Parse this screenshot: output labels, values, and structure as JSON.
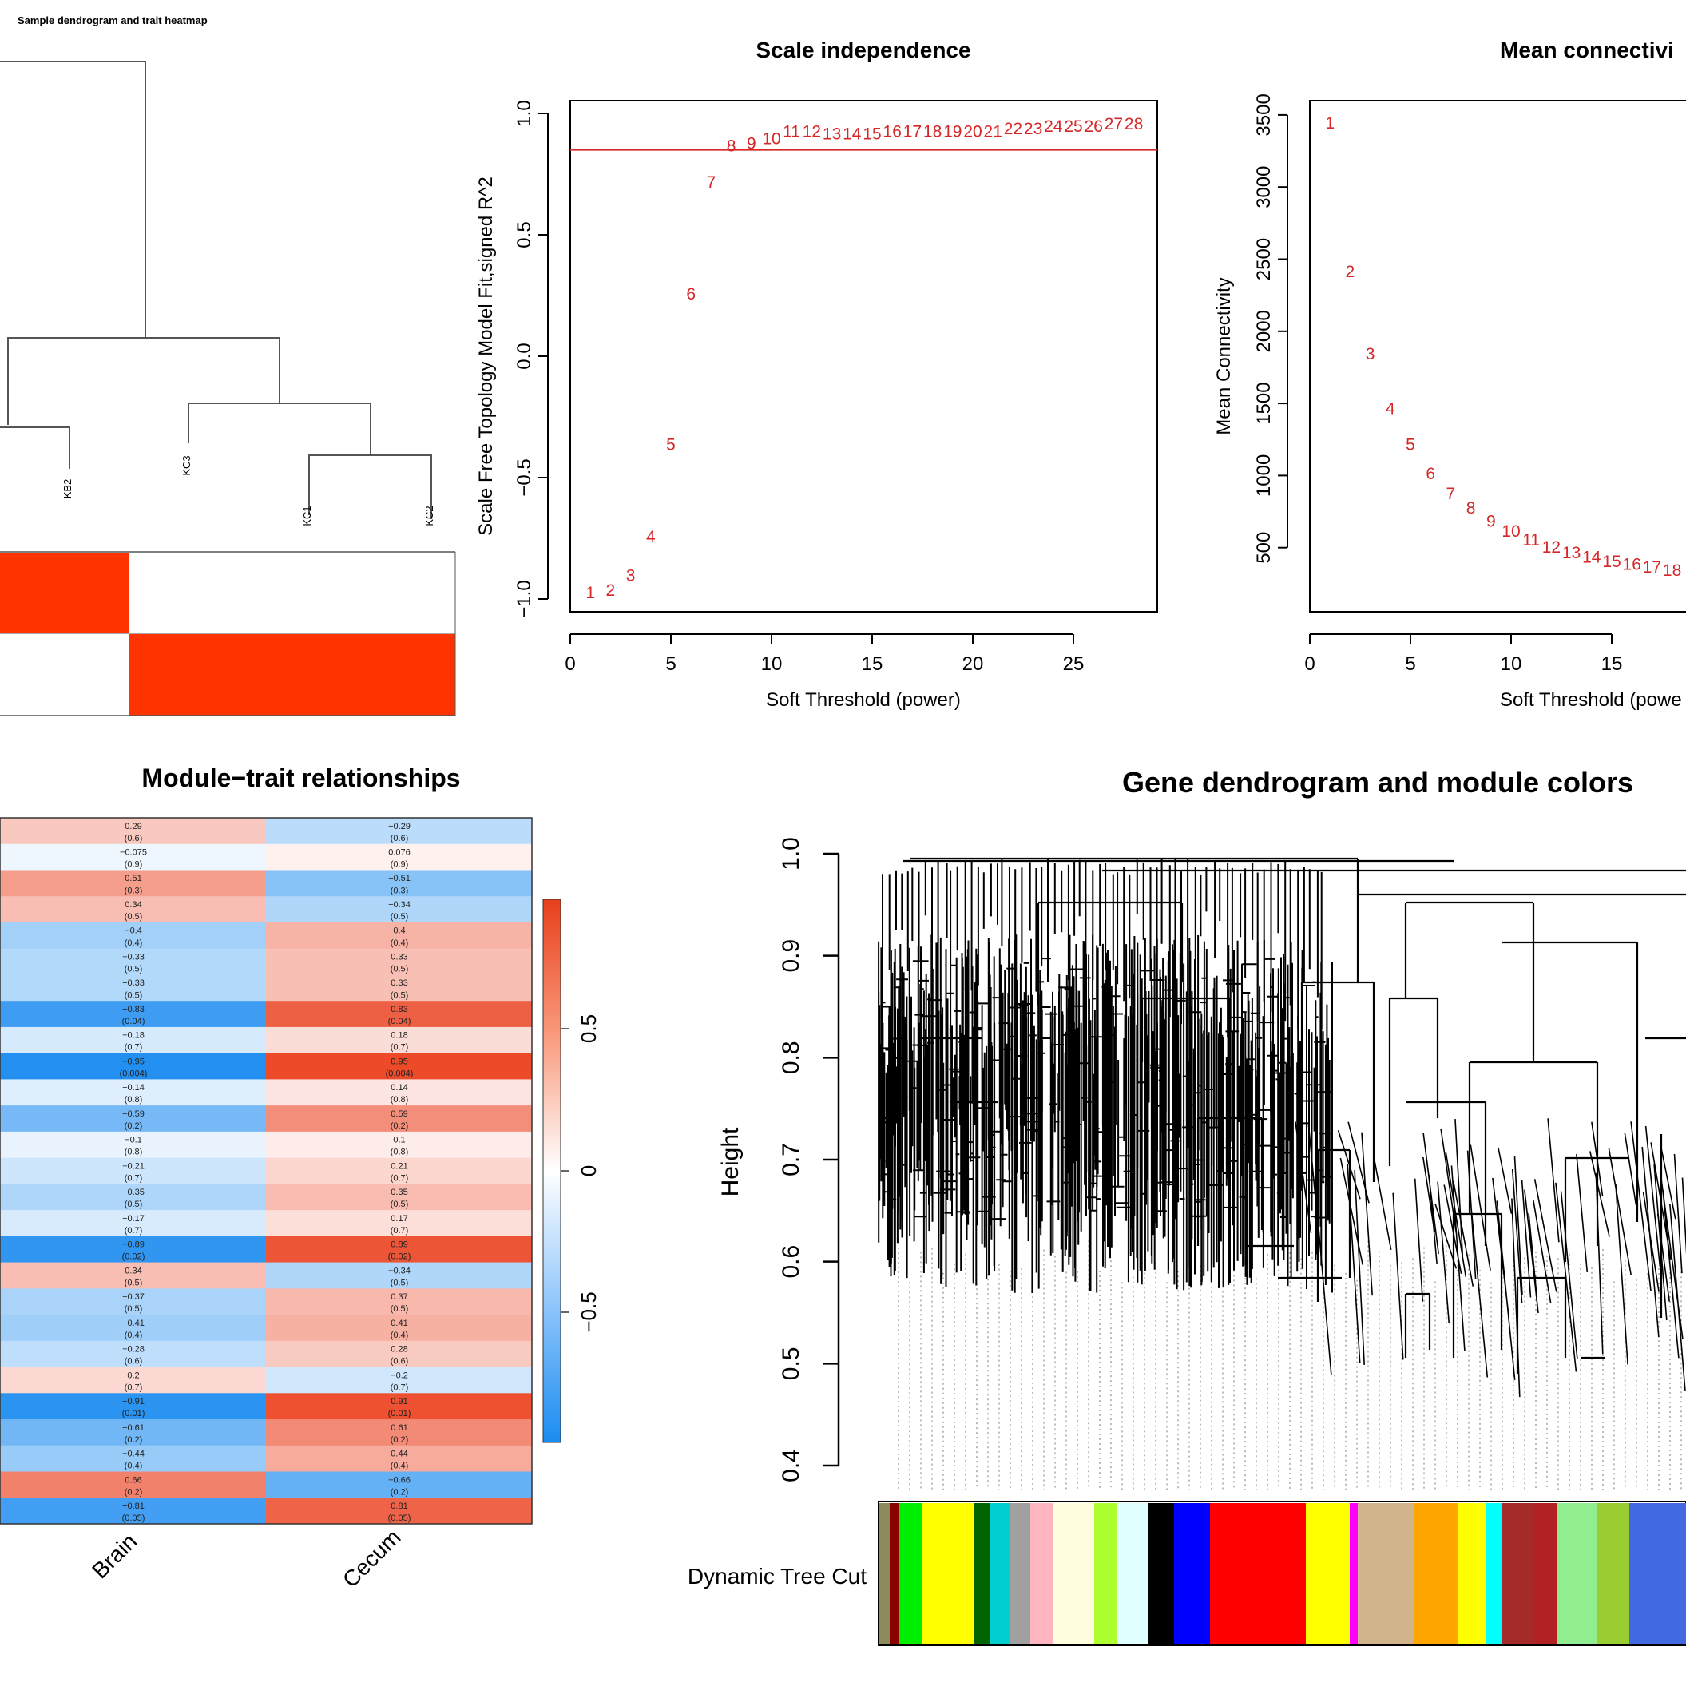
{
  "panel_a": {
    "title": "Sample dendrogram and trait heatmap",
    "samples": [
      "KB2",
      "KC3",
      "KC1",
      "KC2"
    ],
    "colors": {
      "trait_high": "#ff3300",
      "trait_low": "#ffffff"
    }
  },
  "panel_b": {
    "title": "Scale independence",
    "xlabel": "Soft Threshold (power)",
    "ylabel": "Scale Free Topology Model Fit,signed R^2",
    "x_ticks": [
      "0",
      "5",
      "10",
      "15",
      "20",
      "25"
    ],
    "y_ticks": [
      "-1.0",
      "-0.5",
      "0.0",
      "0.5",
      "1.0"
    ],
    "cutoff_color": "#d62728"
  },
  "panel_c": {
    "title": "Mean connectivi",
    "xlabel": "Soft Threshold (powe",
    "ylabel": "Mean Connectivity",
    "x_ticks": [
      "0",
      "5",
      "10",
      "15"
    ],
    "y_ticks": [
      "500",
      "1000",
      "1500",
      "2000",
      "2500",
      "3000",
      "3500"
    ]
  },
  "panel_d": {
    "title": "Module−trait relationships",
    "traits": [
      "Brain",
      "Cecum"
    ],
    "legend_ticks": [
      "0.5",
      "0",
      "−0.5"
    ]
  },
  "panel_e": {
    "title": "Gene dendrogram and module colors",
    "ylabel": "Height",
    "y_ticks": [
      "0.4",
      "0.5",
      "0.6",
      "0.7",
      "0.8",
      "0.9",
      "1.0"
    ],
    "colorbar_label": "Dynamic Tree Cut",
    "module_colors": [
      "#8b8b5c",
      "#8b0000",
      "#00ee00",
      "#ffff00",
      "#006400",
      "#00ced1",
      "#a0a0a0",
      "#ffb6c1",
      "#ffffe0",
      "#adff2f",
      "#e0ffff",
      "#000000",
      "#0000ff",
      "#ff0000",
      "#ffff00",
      "#ff00ff",
      "#d2b48c",
      "#ffa500",
      "#ffff00",
      "#00ffff",
      "#a52a2a",
      "#b22222",
      "#90ee90",
      "#9acd32",
      "#4169e1"
    ]
  },
  "chart_data": [
    {
      "type": "scatter",
      "title": "Scale independence",
      "xlabel": "Soft Threshold (power)",
      "ylabel": "Scale Free Topology Model Fit,signed R^2",
      "x": [
        1,
        2,
        3,
        4,
        5,
        6,
        7,
        8,
        9,
        10,
        11,
        12,
        13,
        14,
        15,
        16,
        17,
        18,
        19,
        20,
        21,
        22,
        23,
        24,
        25,
        26,
        27,
        28
      ],
      "y": [
        -0.97,
        -0.96,
        -0.9,
        -0.74,
        -0.36,
        0.26,
        0.72,
        0.87,
        0.88,
        0.9,
        0.93,
        0.93,
        0.92,
        0.92,
        0.92,
        0.93,
        0.93,
        0.93,
        0.93,
        0.93,
        0.93,
        0.94,
        0.94,
        0.95,
        0.95,
        0.95,
        0.96,
        0.96
      ],
      "labels": [
        "1",
        "2",
        "3",
        "4",
        "5",
        "6",
        "7",
        "8",
        "9",
        "10",
        "11",
        "12",
        "13",
        "14",
        "15",
        "16",
        "17",
        "18",
        "19",
        "20",
        "21",
        "22",
        "23",
        "24",
        "25",
        "26",
        "27",
        "28"
      ],
      "xlim": [
        0,
        29
      ],
      "ylim": [
        -1.05,
        1.05
      ],
      "hline": 0.85
    },
    {
      "type": "scatter",
      "title": "Mean connectivi",
      "xlabel": "Soft Threshold (powe",
      "ylabel": "Mean Connectivity",
      "x": [
        1,
        2,
        3,
        4,
        5,
        6,
        7,
        8,
        9,
        10,
        11,
        12,
        13,
        14,
        15,
        16,
        17,
        18
      ],
      "y": [
        3450,
        2420,
        1850,
        1470,
        1220,
        1020,
        880,
        780,
        690,
        620,
        560,
        510,
        470,
        440,
        410,
        390,
        370,
        350
      ],
      "labels": [
        "1",
        "2",
        "3",
        "4",
        "5",
        "6",
        "7",
        "8",
        "9",
        "10",
        "11",
        "12",
        "13",
        "14",
        "15",
        "16",
        "17",
        "18"
      ],
      "xlim": [
        0,
        19
      ],
      "ylim": [
        0,
        3600
      ]
    },
    {
      "type": "heatmap",
      "title": "Module−trait relationships",
      "columns": [
        "Brain",
        "Cecum"
      ],
      "rows": [
        {
          "brain": [
            "0.29",
            "(0.6)"
          ],
          "cecum": [
            "−0.29",
            "(0.6)"
          ],
          "v": 0.29
        },
        {
          "brain": [
            "−0.075",
            "(0.9)"
          ],
          "cecum": [
            "0.076",
            "(0.9)"
          ],
          "v": -0.075
        },
        {
          "brain": [
            "0.51",
            "(0.3)"
          ],
          "cecum": [
            "−0.51",
            "(0.3)"
          ],
          "v": 0.51
        },
        {
          "brain": [
            "0.34",
            "(0.5)"
          ],
          "cecum": [
            "−0.34",
            "(0.5)"
          ],
          "v": 0.34
        },
        {
          "brain": [
            "−0.4",
            "(0.4)"
          ],
          "cecum": [
            "0.4",
            "(0.4)"
          ],
          "v": -0.4
        },
        {
          "brain": [
            "−0.33",
            "(0.5)"
          ],
          "cecum": [
            "0.33",
            "(0.5)"
          ],
          "v": -0.33
        },
        {
          "brain": [
            "−0.33",
            "(0.5)"
          ],
          "cecum": [
            "0.33",
            "(0.5)"
          ],
          "v": -0.33
        },
        {
          "brain": [
            "−0.83",
            "(0.04)"
          ],
          "cecum": [
            "0.83",
            "(0.04)"
          ],
          "v": -0.83
        },
        {
          "brain": [
            "−0.18",
            "(0.7)"
          ],
          "cecum": [
            "0.18",
            "(0.7)"
          ],
          "v": -0.18
        },
        {
          "brain": [
            "−0.95",
            "(0.004)"
          ],
          "cecum": [
            "0.95",
            "(0.004)"
          ],
          "v": -0.95
        },
        {
          "brain": [
            "−0.14",
            "(0.8)"
          ],
          "cecum": [
            "0.14",
            "(0.8)"
          ],
          "v": -0.14
        },
        {
          "brain": [
            "−0.59",
            "(0.2)"
          ],
          "cecum": [
            "0.59",
            "(0.2)"
          ],
          "v": -0.59
        },
        {
          "brain": [
            "−0.1",
            "(0.8)"
          ],
          "cecum": [
            "0.1",
            "(0.8)"
          ],
          "v": -0.1
        },
        {
          "brain": [
            "−0.21",
            "(0.7)"
          ],
          "cecum": [
            "0.21",
            "(0.7)"
          ],
          "v": -0.21
        },
        {
          "brain": [
            "−0.35",
            "(0.5)"
          ],
          "cecum": [
            "0.35",
            "(0.5)"
          ],
          "v": -0.35
        },
        {
          "brain": [
            "−0.17",
            "(0.7)"
          ],
          "cecum": [
            "0.17",
            "(0.7)"
          ],
          "v": -0.17
        },
        {
          "brain": [
            "−0.89",
            "(0.02)"
          ],
          "cecum": [
            "0.89",
            "(0.02)"
          ],
          "v": -0.89
        },
        {
          "brain": [
            "0.34",
            "(0.5)"
          ],
          "cecum": [
            "−0.34",
            "(0.5)"
          ],
          "v": 0.34
        },
        {
          "brain": [
            "−0.37",
            "(0.5)"
          ],
          "cecum": [
            "0.37",
            "(0.5)"
          ],
          "v": -0.37
        },
        {
          "brain": [
            "−0.41",
            "(0.4)"
          ],
          "cecum": [
            "0.41",
            "(0.4)"
          ],
          "v": -0.41
        },
        {
          "brain": [
            "−0.28",
            "(0.6)"
          ],
          "cecum": [
            "0.28",
            "(0.6)"
          ],
          "v": -0.28
        },
        {
          "brain": [
            "0.2",
            "(0.7)"
          ],
          "cecum": [
            "−0.2",
            "(0.7)"
          ],
          "v": 0.2
        },
        {
          "brain": [
            "−0.91",
            "(0.01)"
          ],
          "cecum": [
            "0.91",
            "(0.01)"
          ],
          "v": -0.91
        },
        {
          "brain": [
            "−0.61",
            "(0.2)"
          ],
          "cecum": [
            "0.61",
            "(0.2)"
          ],
          "v": -0.61
        },
        {
          "brain": [
            "−0.44",
            "(0.4)"
          ],
          "cecum": [
            "0.44",
            "(0.4)"
          ],
          "v": -0.44
        },
        {
          "brain": [
            "0.66",
            "(0.2)"
          ],
          "cecum": [
            "−0.66",
            "(0.2)"
          ],
          "v": 0.66
        },
        {
          "brain": [
            "−0.81",
            "(0.05)"
          ],
          "cecum": [
            "0.81",
            "(0.05)"
          ],
          "v": -0.81
        }
      ],
      "legend_range": [
        -1,
        1
      ]
    }
  ]
}
